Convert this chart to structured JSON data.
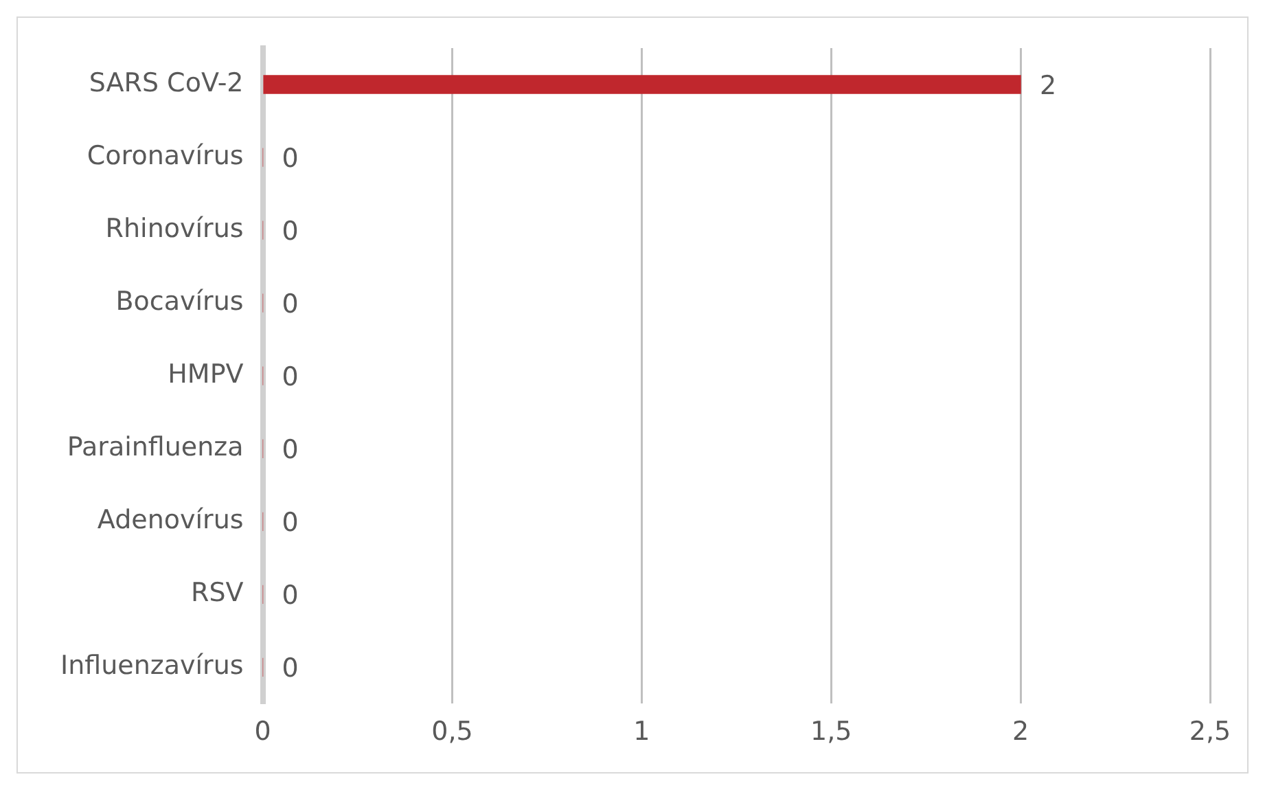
{
  "chart_data": {
    "type": "bar",
    "orientation": "horizontal",
    "categories": [
      "SARS CoV-2",
      "Coronavírus",
      "Rhinovírus",
      "Bocavírus",
      "HMPV",
      "Parainfluenza",
      "Adenovírus",
      "RSV",
      "Influenzavírus"
    ],
    "values": [
      2,
      0,
      0,
      0,
      0,
      0,
      0,
      0,
      0
    ],
    "color": "#c0272d",
    "xlim": [
      0,
      2.5
    ],
    "xticks": [
      0,
      {
        "value": 0.5,
        "label": "0,5"
      },
      1,
      {
        "value": 1.5,
        "label": "1,5"
      },
      2,
      {
        "value": 2.5,
        "label": "2,5"
      }
    ],
    "grid": "x",
    "data_labels": true,
    "legend": false
  }
}
